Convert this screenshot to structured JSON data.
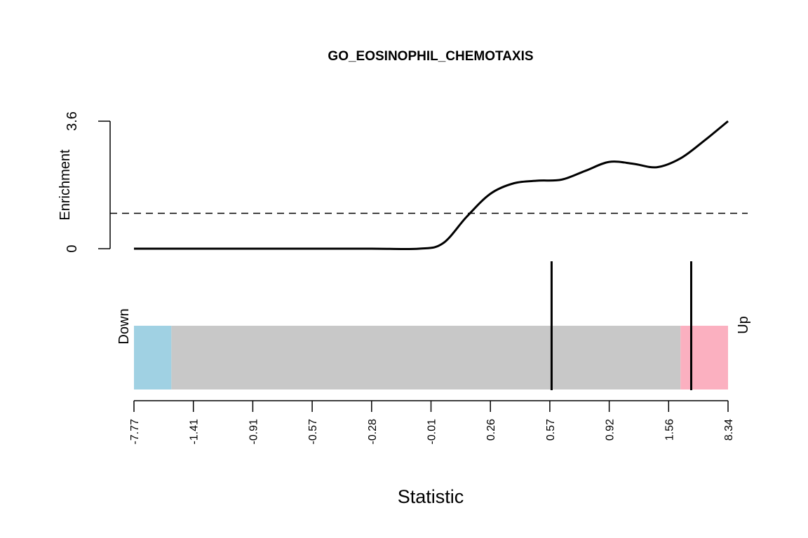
{
  "chart_data": {
    "type": "line",
    "title": "GO_EOSINOPHIL_CHEMOTAXIS",
    "xlabel": "Statistic",
    "ylabel": "Enrichment",
    "y_ticks": [
      "0",
      "3.6"
    ],
    "ylim": [
      0,
      3.6
    ],
    "x_tick_labels": [
      "-7.77",
      "-1.41",
      "-0.91",
      "-0.57",
      "-0.28",
      "-0.01",
      "0.26",
      "0.57",
      "0.92",
      "1.56",
      "8.34"
    ],
    "null_line": 1.0,
    "series": [
      {
        "x": [
          0,
          0.1,
          0.2,
          0.3,
          0.4,
          0.48,
          0.52,
          0.56,
          0.6,
          0.64,
          0.68,
          0.72,
          0.76,
          0.8,
          0.84,
          0.88,
          0.92,
          0.96,
          1.0
        ],
        "values": [
          0,
          0,
          0,
          0,
          0,
          0,
          0.15,
          0.9,
          1.55,
          1.85,
          1.92,
          1.95,
          2.2,
          2.45,
          2.4,
          2.3,
          2.55,
          3.05,
          3.6
        ]
      }
    ],
    "barcode": {
      "down_label": "Down",
      "up_label": "Up",
      "down_color": "#A0D1E3",
      "middle_color": "#C8C8C8",
      "up_color": "#FBB0C0",
      "down_fraction": 0.063,
      "up_fraction": 0.08,
      "gene_positions": [
        0.703,
        0.938
      ]
    }
  }
}
